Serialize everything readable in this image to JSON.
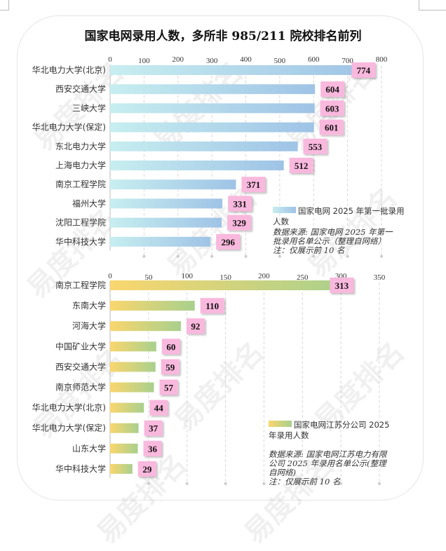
{
  "title": "国家电网录用人数，多所非 985/211 院校排名前列",
  "watermark": "易度排名 EDU Ranking.cn",
  "colors": {
    "chart1_bar_start": "#c7eef0",
    "chart1_bar_end": "#9fc3e6",
    "chart2_bar_start": "#fad66e",
    "chart2_bar_end": "#a8d08d",
    "label_bg": "#f9b8dd",
    "grid": "#d9d9d9"
  },
  "chart_data": [
    {
      "type": "bar",
      "orientation": "horizontal",
      "categories": [
        "华北电力大学(北京)",
        "西安交通大学",
        "三峡大学",
        "华北电力大学(保定)",
        "东北电力大学",
        "上海电力大学",
        "南京工程学院",
        "福州大学",
        "沈阳工程学院",
        "华中科技大学"
      ],
      "values": [
        774,
        604,
        603,
        601,
        553,
        512,
        371,
        331,
        329,
        296
      ],
      "series_name": "国家电网 2025 年第一批录用人数",
      "xlim": [
        0,
        800
      ],
      "xticks": [
        0,
        100,
        200,
        300,
        400,
        500,
        600,
        700,
        800
      ],
      "grid": true,
      "legend_position": "bottom-right",
      "source_note": "数据来源: 国家电网 2025 年第一批录用名单公示（整理自网络）",
      "note": "注：仅展示前 10 名"
    },
    {
      "type": "bar",
      "orientation": "horizontal",
      "categories": [
        "南京工程学院",
        "东南大学",
        "河海大学",
        "中国矿业大学",
        "西安交通大学",
        "南京师范大学",
        "华北电力大学(北京)",
        "华北电力大学(保定)",
        "山东大学",
        "华中科技大学"
      ],
      "values": [
        313,
        110,
        92,
        60,
        59,
        57,
        44,
        37,
        36,
        29
      ],
      "series_name": "国家电网江苏分公司 2025 年录用人数",
      "xlim": [
        0,
        350
      ],
      "xticks": [
        0,
        50,
        100,
        150,
        200,
        250,
        300,
        350
      ],
      "grid": true,
      "legend_position": "bottom-right",
      "source_note": "数据来源: 国家电网江苏电力有限公司 2025 年录用名单公示(整理自网络)",
      "note": "注：仅展示前 10 名"
    }
  ]
}
